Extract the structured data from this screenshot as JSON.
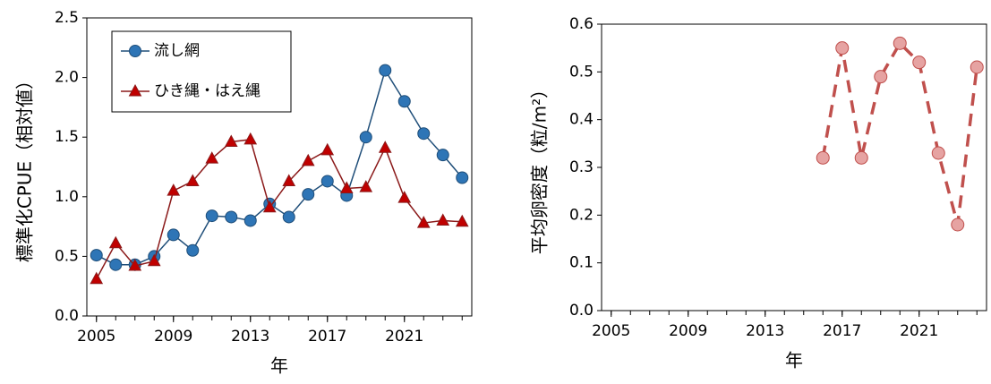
{
  "chart_data": [
    {
      "type": "line",
      "xlabel": "年",
      "ylabel": "標準化CPUE（相対値）",
      "x": [
        2005,
        2006,
        2007,
        2008,
        2009,
        2010,
        2011,
        2012,
        2013,
        2014,
        2015,
        2016,
        2017,
        2018,
        2019,
        2020,
        2021,
        2022,
        2023,
        2024
      ],
      "series": [
        {
          "name": "流し網",
          "color": "#1f4e79",
          "marker": "circle",
          "marker_color": "#2e75b6",
          "values": [
            0.51,
            0.43,
            0.43,
            0.5,
            0.68,
            0.55,
            0.84,
            0.83,
            0.8,
            0.94,
            0.83,
            1.02,
            1.13,
            1.01,
            1.5,
            2.06,
            1.8,
            1.53,
            1.35,
            1.16
          ]
        },
        {
          "name": "ひき縄・はえ縄",
          "color": "#8b1a1a",
          "marker": "triangle",
          "marker_color": "#c00000",
          "values": [
            0.31,
            0.61,
            0.42,
            0.46,
            1.05,
            1.13,
            1.32,
            1.46,
            1.48,
            0.91,
            1.13,
            1.3,
            1.39,
            1.07,
            1.08,
            1.41,
            0.99,
            0.78,
            0.8,
            0.79
          ]
        }
      ],
      "xlim": [
        2004.5,
        2024.5
      ],
      "xticks": [
        2005,
        2009,
        2013,
        2017,
        2021
      ],
      "ylim": [
        0,
        2.5
      ],
      "yticks": [
        {
          "value": 0,
          "label": "0.0"
        },
        0.5,
        {
          "value": 1,
          "label": "1.0"
        },
        1.5,
        {
          "value": 2,
          "label": "2.0"
        },
        2.5
      ],
      "legend": "upper left"
    },
    {
      "type": "line",
      "xlabel": "年",
      "ylabel": "平均卵密度（粒/m²）",
      "x": [
        2016,
        2017,
        2018,
        2019,
        2020,
        2021,
        2022,
        2023,
        2024
      ],
      "series": [
        {
          "color": "#c0504d",
          "marker": "circle",
          "marker_color": "#e6a3a2",
          "dash": true,
          "values": [
            0.32,
            0.55,
            0.32,
            0.49,
            0.56,
            0.52,
            0.33,
            0.18,
            0.51
          ]
        }
      ],
      "xlim": [
        2004.5,
        2024.5
      ],
      "xticks": [
        2005,
        2009,
        2013,
        2017,
        2021
      ],
      "ylim": [
        0,
        0.6
      ],
      "yticks": [
        {
          "value": 0,
          "label": "0.0"
        },
        0.1,
        0.2,
        0.3,
        0.4,
        0.5,
        0.6
      ]
    }
  ]
}
